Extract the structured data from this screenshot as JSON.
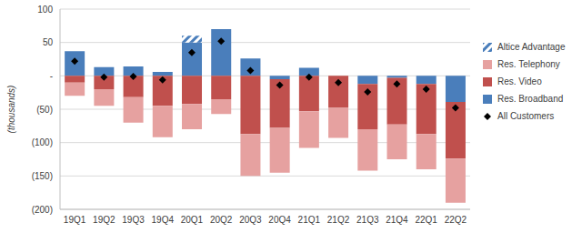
{
  "chart_data": {
    "type": "bar",
    "stacked": true,
    "grid": true,
    "legend": "right",
    "ylabel": "(thousands)",
    "categories": [
      "19Q1",
      "19Q2",
      "19Q3",
      "19Q4",
      "20Q1",
      "20Q2",
      "20Q3",
      "20Q4",
      "21Q1",
      "21Q2",
      "21Q3",
      "21Q4",
      "22Q1",
      "22Q2"
    ],
    "ylim": [
      -200,
      100
    ],
    "yticks": [
      {
        "value": -200,
        "label": "(200)"
      },
      {
        "value": -150,
        "label": "(150)"
      },
      {
        "value": -100,
        "label": "(100)"
      },
      {
        "value": -50,
        "label": "(50)"
      },
      {
        "value": 0,
        "label": "-"
      },
      50,
      100
    ],
    "series": [
      {
        "name": "Res. Broadband",
        "type": "bar",
        "color": "#4a7ebb",
        "values": [
          37,
          13,
          14,
          6,
          50,
          70,
          26,
          -5,
          12,
          0,
          -12,
          -3,
          -12,
          -39
        ]
      },
      {
        "name": "Res. Video",
        "type": "bar",
        "color": "#c0504d",
        "values": [
          -10,
          -20,
          -32,
          -45,
          -42,
          -35,
          -87,
          -73,
          -53,
          -48,
          -68,
          -70,
          -75,
          -85
        ]
      },
      {
        "name": "Res. Telephony",
        "type": "bar",
        "color": "#e6a1a0",
        "values": [
          -20,
          -25,
          -38,
          -47,
          -38,
          -22,
          -63,
          -67,
          -55,
          -45,
          -62,
          -52,
          -53,
          -66
        ]
      },
      {
        "name": "Altice Advantage",
        "type": "bar",
        "color": "#4a7ebb",
        "line_style": "hatched",
        "values": [
          null,
          null,
          null,
          null,
          10,
          null,
          null,
          null,
          null,
          null,
          null,
          null,
          null,
          null
        ]
      },
      {
        "name": "All Customers",
        "type": "scatter",
        "marker": "diamond",
        "color": "#000000",
        "values": [
          22,
          -2,
          -1,
          -6,
          35,
          52,
          8,
          -14,
          -2,
          -10,
          -24,
          -12,
          -20,
          -48
        ]
      }
    ]
  }
}
